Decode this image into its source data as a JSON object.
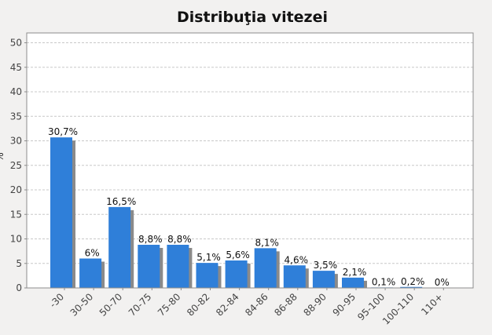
{
  "chart_data": {
    "type": "bar",
    "title": "Distribuţia vitezei",
    "ylabel": "%",
    "xlabel": "",
    "ylim": [
      0,
      52
    ],
    "yticks": [
      0,
      5,
      10,
      15,
      20,
      25,
      30,
      35,
      40,
      45,
      50
    ],
    "grid": true,
    "categories": [
      "-30",
      "30-50",
      "50-70",
      "70-75",
      "75-80",
      "80-82",
      "82-84",
      "84-86",
      "86-88",
      "88-90",
      "90-95",
      "95-100",
      "100-110",
      "110+"
    ],
    "values": [
      30.7,
      6,
      16.5,
      8.8,
      8.8,
      5.1,
      5.6,
      8.1,
      4.6,
      3.5,
      2.1,
      0.1,
      0.2,
      0
    ],
    "data_labels": [
      "30,7%",
      "6%",
      "16,5%",
      "8,8%",
      "8,8%",
      "5,1%",
      "5,6%",
      "8,1%",
      "4,6%",
      "3,5%",
      "2,1%",
      "0,1%",
      "0,2%",
      "0%"
    ],
    "colors": {
      "bar": "#2f7fd9",
      "bar_shadow": "#8a8a8a",
      "plot_background": "#ffffff",
      "grid": "#c8c8c8",
      "page_background": "#f2f1f0"
    }
  }
}
